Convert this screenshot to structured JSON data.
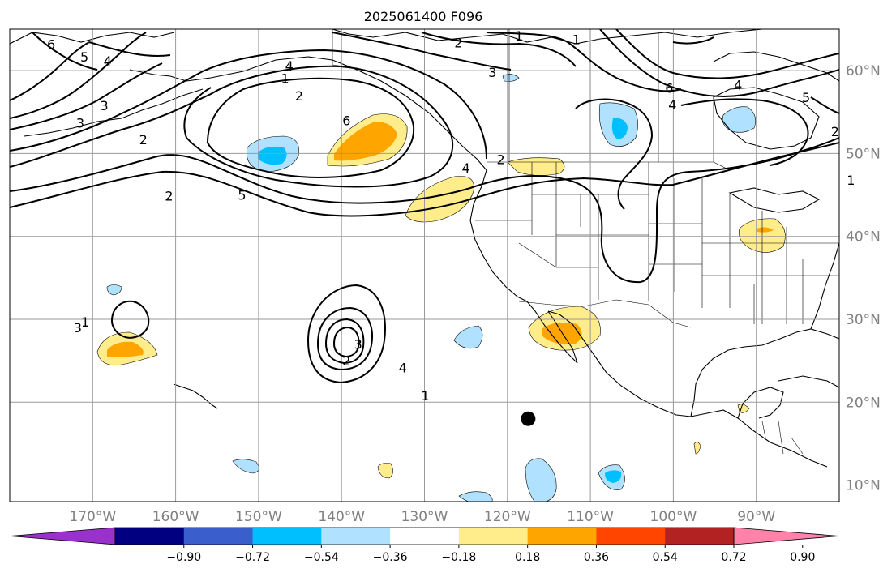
{
  "title": "2025061400 F096",
  "map": {
    "lon_range": [
      -180,
      -80
    ],
    "lat_range": [
      8,
      65
    ],
    "lon_ticks": [
      {
        "lon": -170,
        "label": "170°W"
      },
      {
        "lon": -160,
        "label": "160°W"
      },
      {
        "lon": -150,
        "label": "150°W"
      },
      {
        "lon": -140,
        "label": "140°W"
      },
      {
        "lon": -130,
        "label": "130°W"
      },
      {
        "lon": -120,
        "label": "120°W"
      },
      {
        "lon": -110,
        "label": "110°W"
      },
      {
        "lon": -100,
        "label": "100°W"
      },
      {
        "lon": -90,
        "label": "90°W"
      }
    ],
    "lat_ticks": [
      {
        "lat": 60,
        "label": "60°N"
      },
      {
        "lat": 50,
        "label": "50°N"
      },
      {
        "lat": 40,
        "label": "40°N"
      },
      {
        "lat": 30,
        "label": "30°N"
      },
      {
        "lat": 20,
        "label": "20°N"
      },
      {
        "lat": 10,
        "label": "10°N"
      }
    ],
    "grid": true,
    "marker": {
      "lon": -117.5,
      "lat": 18.0
    }
  },
  "colorbar": {
    "orientation": "horizontal",
    "extend": "both",
    "bounds": [
      -0.9,
      -0.72,
      -0.54,
      -0.36,
      -0.18,
      0.18,
      0.36,
      0.54,
      0.72,
      0.9
    ],
    "tick_labels": [
      "−0.90",
      "−0.72",
      "−0.54",
      "−0.36",
      "−0.18",
      "0.18",
      "0.36",
      "0.54",
      "0.72",
      "0.90"
    ],
    "colors": [
      "#9932CC",
      "#000080",
      "#3A5FCD",
      "#00BFFF",
      "#B0E2FF",
      "#FFFFFF",
      "#FFEC8B",
      "#FFA500",
      "#FF4500",
      "#B22222",
      "#FF82AB"
    ]
  },
  "contour_labels": [
    {
      "text": "6",
      "lon": -175.0,
      "lat": 63.2
    },
    {
      "text": "5",
      "lon": -171.0,
      "lat": 61.7
    },
    {
      "text": "4",
      "lon": -168.2,
      "lat": 61.2
    },
    {
      "text": "4",
      "lon": -146.3,
      "lat": 60.6
    },
    {
      "text": "3",
      "lon": -171.5,
      "lat": 53.7
    },
    {
      "text": "3",
      "lon": -171.8,
      "lat": 29.0
    },
    {
      "text": "3",
      "lon": -168.6,
      "lat": 55.8
    },
    {
      "text": "2",
      "lon": -163.9,
      "lat": 51.7
    },
    {
      "text": "2",
      "lon": -145.1,
      "lat": 57.0
    },
    {
      "text": "2",
      "lon": -120.8,
      "lat": 49.3
    },
    {
      "text": "2",
      "lon": -160.8,
      "lat": 44.9
    },
    {
      "text": "1",
      "lon": -146.8,
      "lat": 59.1
    },
    {
      "text": "1",
      "lon": -111.7,
      "lat": 63.8
    },
    {
      "text": "5",
      "lon": -152.0,
      "lat": 45.0
    },
    {
      "text": "6",
      "lon": -139.4,
      "lat": 54.0
    },
    {
      "text": "3",
      "lon": -121.8,
      "lat": 59.8
    },
    {
      "text": "4",
      "lon": -125.0,
      "lat": 48.3
    },
    {
      "text": "2",
      "lon": -125.9,
      "lat": 63.4
    },
    {
      "text": "1",
      "lon": -118.6,
      "lat": 64.2
    },
    {
      "text": "6",
      "lon": -100.5,
      "lat": 57.9
    },
    {
      "text": "4",
      "lon": -100.1,
      "lat": 55.9
    },
    {
      "text": "5",
      "lon": -84.0,
      "lat": 56.8
    },
    {
      "text": "1",
      "lon": -78.6,
      "lat": 46.8
    },
    {
      "text": "4",
      "lon": -92.2,
      "lat": 58.3
    },
    {
      "text": "2",
      "lon": -80.5,
      "lat": 52.7
    },
    {
      "text": "1",
      "lon": -170.9,
      "lat": 29.7
    },
    {
      "text": "2",
      "lon": -139.4,
      "lat": 25.0
    },
    {
      "text": "3",
      "lon": -138.0,
      "lat": 27.0
    },
    {
      "text": "4",
      "lon": -132.6,
      "lat": 24.2
    },
    {
      "text": "1",
      "lon": -129.9,
      "lat": 20.8
    }
  ]
}
